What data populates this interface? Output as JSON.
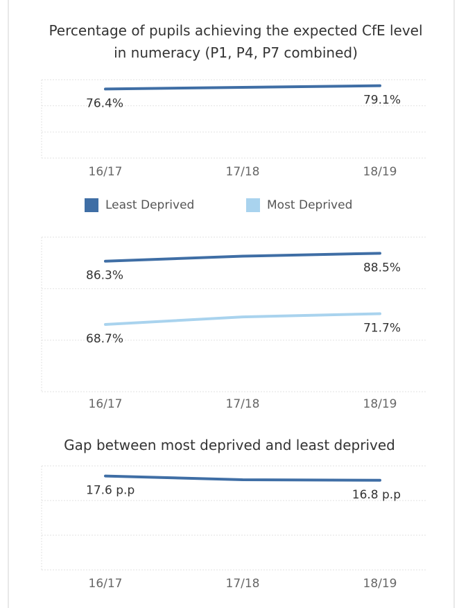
{
  "chart_data": [
    {
      "type": "line",
      "title": "Percentage of pupils achieving the expected CfE level in numeracy (P1, P4, P7 combined)",
      "categories": [
        "16/17",
        "17/18",
        "18/19"
      ],
      "ylim": [
        20,
        84
      ],
      "grid": true,
      "series": [
        {
          "color": "#3f6ea5",
          "values": [
            76.4,
            77.8,
            79.1
          ],
          "value_labels": [
            "76.4%",
            null,
            "79.1%"
          ]
        }
      ]
    },
    {
      "type": "line",
      "categories": [
        "16/17",
        "17/18",
        "18/19"
      ],
      "ylim": [
        50,
        93
      ],
      "grid": true,
      "legend": "top",
      "series": [
        {
          "name": "Least Deprived",
          "color": "#3f6ea5",
          "values": [
            86.3,
            87.7,
            88.5
          ],
          "value_labels": [
            "86.3%",
            null,
            "88.5%"
          ]
        },
        {
          "name": "Most Deprived",
          "color": "#a9d3ee",
          "values": [
            68.7,
            70.8,
            71.7
          ],
          "value_labels": [
            "68.7%",
            null,
            "71.7%"
          ]
        }
      ]
    },
    {
      "type": "line",
      "title": "Gap between most deprived and least deprived",
      "categories": [
        "16/17",
        "17/18",
        "18/19"
      ],
      "ylim": [
        0,
        19.5
      ],
      "grid": true,
      "series": [
        {
          "color": "#3f6ea5",
          "values": [
            17.6,
            16.9,
            16.8
          ],
          "value_labels": [
            "17.6 p.p",
            null,
            "16.8 p.p"
          ]
        }
      ]
    }
  ]
}
